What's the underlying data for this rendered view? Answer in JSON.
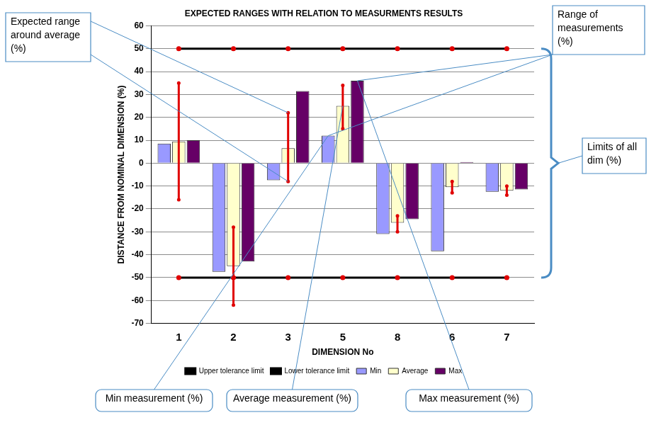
{
  "chart_data": {
    "type": "bar",
    "title": "EXPECTED RANGES WITH RELATION TO MEASURMENTS RESULTS",
    "x_label": "DIMENSION No",
    "y_label": "DISTANCE FROM NOMINAL DIMENSION (%)",
    "categories": [
      "1",
      "2",
      "3",
      "5",
      "8",
      "6",
      "7"
    ],
    "series": [
      {
        "name": "Min",
        "color": "#9999ff",
        "values": [
          8.5,
          -47.5,
          -7.5,
          12,
          -31,
          -38.5,
          -12.5
        ]
      },
      {
        "name": "Average",
        "color": "#ffffcc",
        "values": [
          9.5,
          -45,
          6.5,
          25,
          -26,
          -10.5,
          -12
        ],
        "expected_range_low": [
          -16,
          -62,
          -8,
          15,
          -30,
          -13,
          -14
        ],
        "expected_range_high": [
          35,
          -28,
          22,
          34,
          -23,
          -8,
          -10
        ]
      },
      {
        "name": "Max",
        "color": "#660066",
        "values": [
          10,
          -43,
          31.5,
          36,
          -24.5,
          0.5,
          -11.5
        ]
      },
      {
        "name": "Upper tolerance limit",
        "type": "line",
        "color": "#000000",
        "values": [
          50,
          50,
          50,
          50,
          50,
          50,
          50
        ]
      },
      {
        "name": "Lower tolerance limit",
        "type": "line",
        "color": "#000000",
        "values": [
          -50,
          -50,
          -50,
          -50,
          -50,
          -50,
          -50
        ]
      }
    ],
    "ylim": [
      -70,
      60
    ],
    "yticks": [
      -70,
      -60,
      -50,
      -40,
      -30,
      -20,
      -10,
      0,
      10,
      20,
      30,
      40,
      50,
      60
    ],
    "grid": true,
    "legend": "bottom",
    "annotations": [
      "Expected range around average (%)",
      "Range of measurements (%)",
      "Limits of all dim (%)",
      "Min measurement (%)",
      "Average measurement (%)",
      "Max measurement (%)"
    ]
  }
}
